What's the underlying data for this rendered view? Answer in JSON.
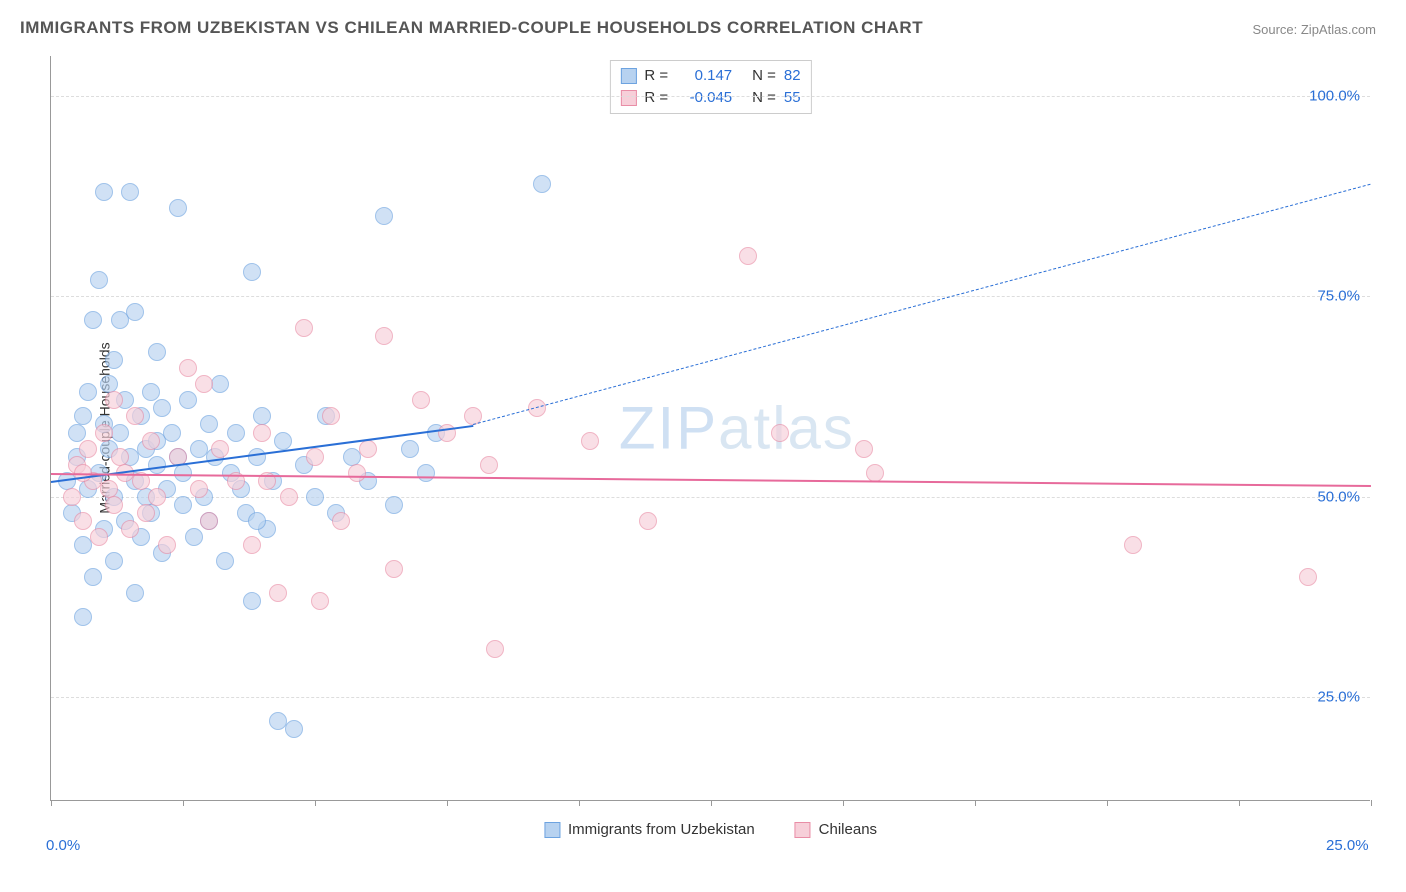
{
  "title": "IMMIGRANTS FROM UZBEKISTAN VS CHILEAN MARRIED-COUPLE HOUSEHOLDS CORRELATION CHART",
  "source": "Source: ZipAtlas.com",
  "watermark": "ZIPatlas",
  "chart": {
    "type": "scatter",
    "ylabel": "Married-couple Households",
    "xlim": [
      0,
      25
    ],
    "ylim": [
      12,
      105
    ],
    "yticks": [
      {
        "value": 25,
        "label": "25.0%"
      },
      {
        "value": 50,
        "label": "50.0%"
      },
      {
        "value": 75,
        "label": "75.0%"
      },
      {
        "value": 100,
        "label": "100.0%"
      }
    ],
    "xticks_major": [
      0,
      2.5,
      5,
      7.5,
      10,
      12.5,
      15,
      17.5,
      20,
      22.5,
      25
    ],
    "xtick_labels": [
      {
        "value": 0,
        "label": "0.0%"
      },
      {
        "value": 25,
        "label": "25.0%"
      }
    ],
    "background_color": "#ffffff",
    "grid_color": "#dddddd",
    "axis_color": "#999999",
    "marker_radius": 9,
    "series": [
      {
        "name": "Immigrants from Uzbekistan",
        "fill_color": "#b7d2f0",
        "stroke_color": "#6da3e0",
        "fill_opacity": 0.65,
        "R": "0.147",
        "N": "82",
        "trend": {
          "x1": 0,
          "y1": 52,
          "x2": 8,
          "y2": 59,
          "solid_until_x": 8,
          "dash_to_x": 25,
          "dash_y2": 89,
          "color": "#2a6fd6",
          "width": 2.5
        },
        "points": [
          [
            0.3,
            52
          ],
          [
            0.4,
            48
          ],
          [
            0.5,
            55
          ],
          [
            0.5,
            58
          ],
          [
            0.6,
            44
          ],
          [
            0.6,
            60
          ],
          [
            0.7,
            51
          ],
          [
            0.7,
            63
          ],
          [
            0.8,
            40
          ],
          [
            0.8,
            72
          ],
          [
            0.9,
            77
          ],
          [
            0.9,
            53
          ],
          [
            1.0,
            59
          ],
          [
            1.0,
            46
          ],
          [
            1.1,
            64
          ],
          [
            1.1,
            56
          ],
          [
            1.2,
            50
          ],
          [
            1.2,
            42
          ],
          [
            1.3,
            72
          ],
          [
            1.3,
            58
          ],
          [
            1.4,
            47
          ],
          [
            1.4,
            62
          ],
          [
            1.5,
            55
          ],
          [
            1.5,
            88
          ],
          [
            1.6,
            52
          ],
          [
            1.6,
            38
          ],
          [
            1.7,
            60
          ],
          [
            1.7,
            45
          ],
          [
            1.8,
            56
          ],
          [
            1.8,
            50
          ],
          [
            1.9,
            63
          ],
          [
            1.9,
            48
          ],
          [
            2.0,
            54
          ],
          [
            2.0,
            57
          ],
          [
            2.1,
            43
          ],
          [
            2.1,
            61
          ],
          [
            2.2,
            51
          ],
          [
            2.3,
            58
          ],
          [
            2.4,
            86
          ],
          [
            2.5,
            49
          ],
          [
            2.5,
            53
          ],
          [
            2.6,
            62
          ],
          [
            2.7,
            45
          ],
          [
            2.8,
            56
          ],
          [
            2.9,
            50
          ],
          [
            3.0,
            59
          ],
          [
            3.0,
            47
          ],
          [
            3.1,
            55
          ],
          [
            3.2,
            64
          ],
          [
            3.3,
            42
          ],
          [
            3.4,
            53
          ],
          [
            3.5,
            58
          ],
          [
            3.6,
            51
          ],
          [
            3.7,
            48
          ],
          [
            3.8,
            78
          ],
          [
            3.8,
            37
          ],
          [
            3.9,
            55
          ],
          [
            4.0,
            60
          ],
          [
            4.1,
            46
          ],
          [
            4.2,
            52
          ],
          [
            4.3,
            22
          ],
          [
            4.4,
            57
          ],
          [
            4.6,
            21
          ],
          [
            4.8,
            54
          ],
          [
            5.0,
            50
          ],
          [
            5.2,
            60
          ],
          [
            5.4,
            48
          ],
          [
            5.7,
            55
          ],
          [
            6.0,
            52
          ],
          [
            6.3,
            85
          ],
          [
            6.5,
            49
          ],
          [
            6.8,
            56
          ],
          [
            7.1,
            53
          ],
          [
            7.3,
            58
          ],
          [
            1.0,
            88
          ],
          [
            0.6,
            35
          ],
          [
            2.0,
            68
          ],
          [
            1.6,
            73
          ],
          [
            1.2,
            67
          ],
          [
            2.4,
            55
          ],
          [
            3.9,
            47
          ],
          [
            9.3,
            89
          ]
        ]
      },
      {
        "name": "Chileans",
        "fill_color": "#f7cfd9",
        "stroke_color": "#e98da6",
        "fill_opacity": 0.65,
        "R": "-0.045",
        "N": "55",
        "trend": {
          "x1": 0,
          "y1": 53,
          "x2": 25,
          "y2": 51.5,
          "solid_until_x": 25,
          "color": "#e76a9b",
          "width": 2.5
        },
        "points": [
          [
            0.4,
            50
          ],
          [
            0.5,
            54
          ],
          [
            0.6,
            47
          ],
          [
            0.7,
            56
          ],
          [
            0.8,
            52
          ],
          [
            0.9,
            45
          ],
          [
            1.0,
            58
          ],
          [
            1.1,
            51
          ],
          [
            1.2,
            49
          ],
          [
            1.3,
            55
          ],
          [
            1.4,
            53
          ],
          [
            1.5,
            46
          ],
          [
            1.6,
            60
          ],
          [
            1.7,
            52
          ],
          [
            1.8,
            48
          ],
          [
            1.9,
            57
          ],
          [
            2.0,
            50
          ],
          [
            2.2,
            44
          ],
          [
            2.4,
            55
          ],
          [
            2.6,
            66
          ],
          [
            2.8,
            51
          ],
          [
            3.0,
            47
          ],
          [
            3.2,
            56
          ],
          [
            3.5,
            52
          ],
          [
            3.8,
            44
          ],
          [
            4.0,
            58
          ],
          [
            4.3,
            38
          ],
          [
            4.5,
            50
          ],
          [
            4.8,
            71
          ],
          [
            5.0,
            55
          ],
          [
            5.3,
            60
          ],
          [
            5.5,
            47
          ],
          [
            5.8,
            53
          ],
          [
            6.0,
            56
          ],
          [
            6.3,
            70
          ],
          [
            6.5,
            41
          ],
          [
            7.0,
            62
          ],
          [
            7.5,
            58
          ],
          [
            8.0,
            60
          ],
          [
            8.3,
            54
          ],
          [
            8.4,
            31
          ],
          [
            9.2,
            61
          ],
          [
            10.2,
            57
          ],
          [
            11.3,
            47
          ],
          [
            13.2,
            80
          ],
          [
            13.8,
            58
          ],
          [
            15.4,
            56
          ],
          [
            15.6,
            53
          ],
          [
            20.5,
            44
          ],
          [
            23.8,
            40
          ],
          [
            5.1,
            37
          ],
          [
            2.9,
            64
          ],
          [
            1.2,
            62
          ],
          [
            0.6,
            53
          ],
          [
            4.1,
            52
          ]
        ]
      }
    ],
    "legend_top": {
      "border_color": "#cccccc",
      "label_color": "#333333",
      "value_color": "#2a6fd6"
    },
    "legend_bottom_labels": [
      "Immigrants from Uzbekistan",
      "Chileans"
    ]
  }
}
